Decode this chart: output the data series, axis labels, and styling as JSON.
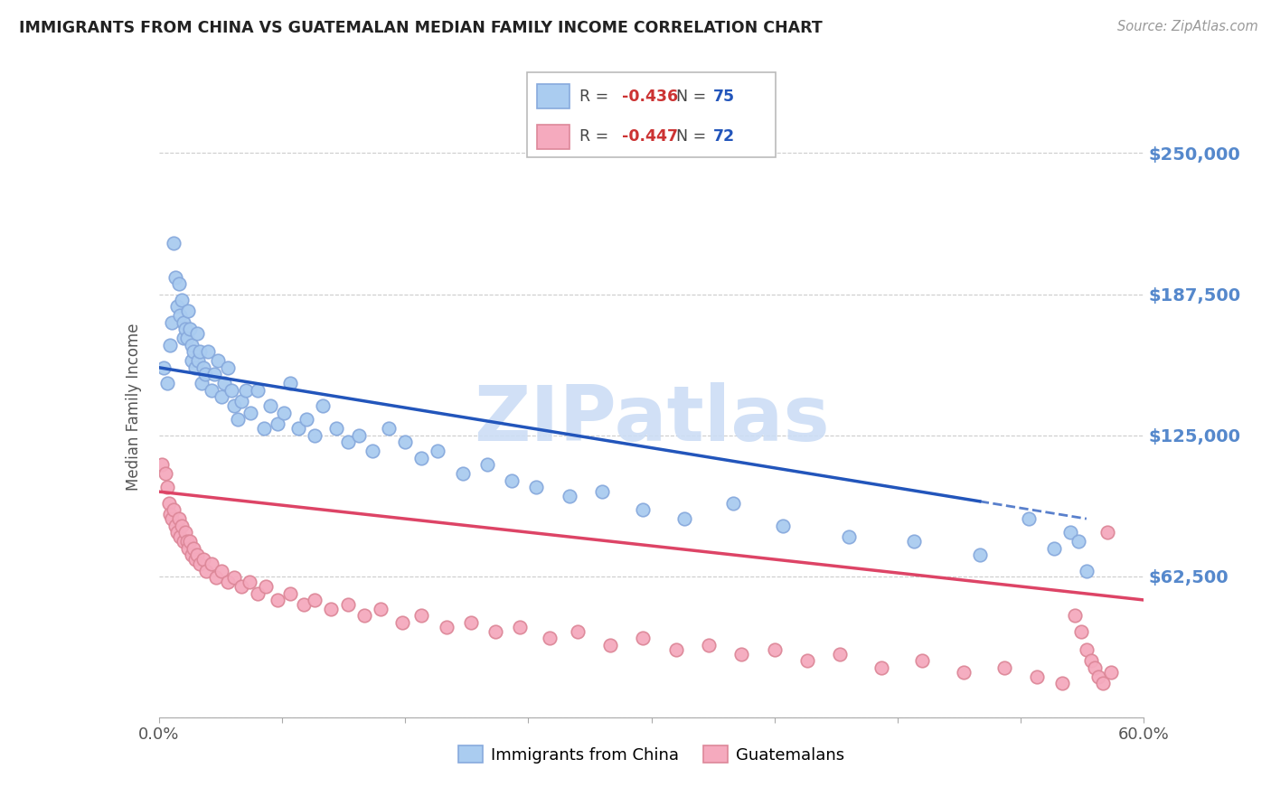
{
  "title": "IMMIGRANTS FROM CHINA VS GUATEMALAN MEDIAN FAMILY INCOME CORRELATION CHART",
  "source": "Source: ZipAtlas.com",
  "ylabel": "Median Family Income",
  "xlim": [
    0.0,
    0.6
  ],
  "ylim": [
    0,
    275000
  ],
  "yticks": [
    0,
    62500,
    125000,
    187500,
    250000
  ],
  "ytick_labels": [
    "",
    "$62,500",
    "$125,000",
    "$187,500",
    "$250,000"
  ],
  "series1_label": "Immigrants from China",
  "series1_color": "#aaccf0",
  "series1_edge": "#88aadd",
  "series1_R": "-0.436",
  "series1_N": "75",
  "series2_label": "Guatemalans",
  "series2_color": "#f5aabe",
  "series2_edge": "#dd8899",
  "series2_R": "-0.447",
  "series2_N": "72",
  "trend1_color": "#2255bb",
  "trend2_color": "#dd4466",
  "watermark": "ZIPatlas",
  "watermark_color": "#ccddf5",
  "background_color": "#ffffff",
  "grid_color": "#cccccc",
  "title_color": "#222222",
  "label_color": "#5588cc",
  "series1_x": [
    0.003,
    0.005,
    0.007,
    0.008,
    0.009,
    0.01,
    0.011,
    0.012,
    0.013,
    0.014,
    0.015,
    0.015,
    0.016,
    0.017,
    0.018,
    0.019,
    0.02,
    0.02,
    0.021,
    0.022,
    0.023,
    0.024,
    0.025,
    0.026,
    0.027,
    0.028,
    0.03,
    0.032,
    0.034,
    0.036,
    0.038,
    0.04,
    0.042,
    0.044,
    0.046,
    0.048,
    0.05,
    0.053,
    0.056,
    0.06,
    0.064,
    0.068,
    0.072,
    0.076,
    0.08,
    0.085,
    0.09,
    0.095,
    0.1,
    0.108,
    0.115,
    0.122,
    0.13,
    0.14,
    0.15,
    0.16,
    0.17,
    0.185,
    0.2,
    0.215,
    0.23,
    0.25,
    0.27,
    0.295,
    0.32,
    0.35,
    0.38,
    0.42,
    0.46,
    0.5,
    0.53,
    0.545,
    0.555,
    0.56,
    0.565
  ],
  "series1_y": [
    155000,
    148000,
    165000,
    175000,
    210000,
    195000,
    182000,
    192000,
    178000,
    185000,
    175000,
    168000,
    172000,
    168000,
    180000,
    172000,
    165000,
    158000,
    162000,
    155000,
    170000,
    158000,
    162000,
    148000,
    155000,
    152000,
    162000,
    145000,
    152000,
    158000,
    142000,
    148000,
    155000,
    145000,
    138000,
    132000,
    140000,
    145000,
    135000,
    145000,
    128000,
    138000,
    130000,
    135000,
    148000,
    128000,
    132000,
    125000,
    138000,
    128000,
    122000,
    125000,
    118000,
    128000,
    122000,
    115000,
    118000,
    108000,
    112000,
    105000,
    102000,
    98000,
    100000,
    92000,
    88000,
    95000,
    85000,
    80000,
    78000,
    72000,
    88000,
    75000,
    82000,
    78000,
    65000
  ],
  "series2_x": [
    0.002,
    0.004,
    0.005,
    0.006,
    0.007,
    0.008,
    0.009,
    0.01,
    0.011,
    0.012,
    0.013,
    0.014,
    0.015,
    0.016,
    0.017,
    0.018,
    0.019,
    0.02,
    0.021,
    0.022,
    0.023,
    0.025,
    0.027,
    0.029,
    0.032,
    0.035,
    0.038,
    0.042,
    0.046,
    0.05,
    0.055,
    0.06,
    0.065,
    0.072,
    0.08,
    0.088,
    0.095,
    0.105,
    0.115,
    0.125,
    0.135,
    0.148,
    0.16,
    0.175,
    0.19,
    0.205,
    0.22,
    0.238,
    0.255,
    0.275,
    0.295,
    0.315,
    0.335,
    0.355,
    0.375,
    0.395,
    0.415,
    0.44,
    0.465,
    0.49,
    0.515,
    0.535,
    0.55,
    0.558,
    0.562,
    0.565,
    0.568,
    0.57,
    0.572,
    0.575,
    0.578,
    0.58
  ],
  "series2_y": [
    112000,
    108000,
    102000,
    95000,
    90000,
    88000,
    92000,
    85000,
    82000,
    88000,
    80000,
    85000,
    78000,
    82000,
    78000,
    75000,
    78000,
    72000,
    75000,
    70000,
    72000,
    68000,
    70000,
    65000,
    68000,
    62000,
    65000,
    60000,
    62000,
    58000,
    60000,
    55000,
    58000,
    52000,
    55000,
    50000,
    52000,
    48000,
    50000,
    45000,
    48000,
    42000,
    45000,
    40000,
    42000,
    38000,
    40000,
    35000,
    38000,
    32000,
    35000,
    30000,
    32000,
    28000,
    30000,
    25000,
    28000,
    22000,
    25000,
    20000,
    22000,
    18000,
    15000,
    45000,
    38000,
    30000,
    25000,
    22000,
    18000,
    15000,
    82000,
    20000
  ]
}
